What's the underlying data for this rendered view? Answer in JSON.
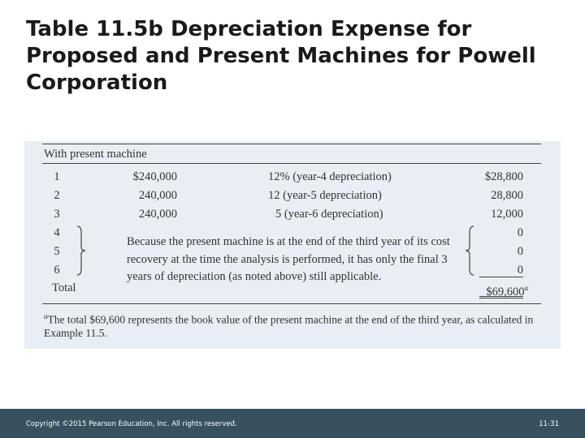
{
  "slide": {
    "title": "Table 11.5b Depreciation Expense for Proposed and Present Machines for Powell Corporation"
  },
  "table": {
    "section_header": "With present machine",
    "rows": [
      {
        "year": "1",
        "amount": "$240,000",
        "percent": "12% (year-4 depreciation)",
        "depreciation": "$28,800"
      },
      {
        "year": "2",
        "amount": "240,000",
        "percent": "12 (year-5 depreciation)",
        "depreciation": "28,800"
      },
      {
        "year": "3",
        "amount": "240,000",
        "percent": "5 (year-6 depreciation)",
        "depreciation": "12,000"
      },
      {
        "year": "4",
        "depreciation": "0"
      },
      {
        "year": "5",
        "depreciation": "0"
      },
      {
        "year": "6",
        "depreciation": "0"
      }
    ],
    "note": "Because the present machine is at the end of the third year of its cost recovery at the time the analysis is performed, it has only the final 3 years of depreciation (as noted above) still applicable.",
    "total_label": "Total",
    "total_value": "$69,600",
    "total_marker": "a",
    "footnote_marker": "a",
    "footnote": "The total $69,600 represents the book value of the present machine at the end of the third year, as calculated in Example 11.5."
  },
  "footer": {
    "copyright": "Copyright ©2015 Pearson Education, Inc. All rights reserved.",
    "page": "11-31"
  }
}
